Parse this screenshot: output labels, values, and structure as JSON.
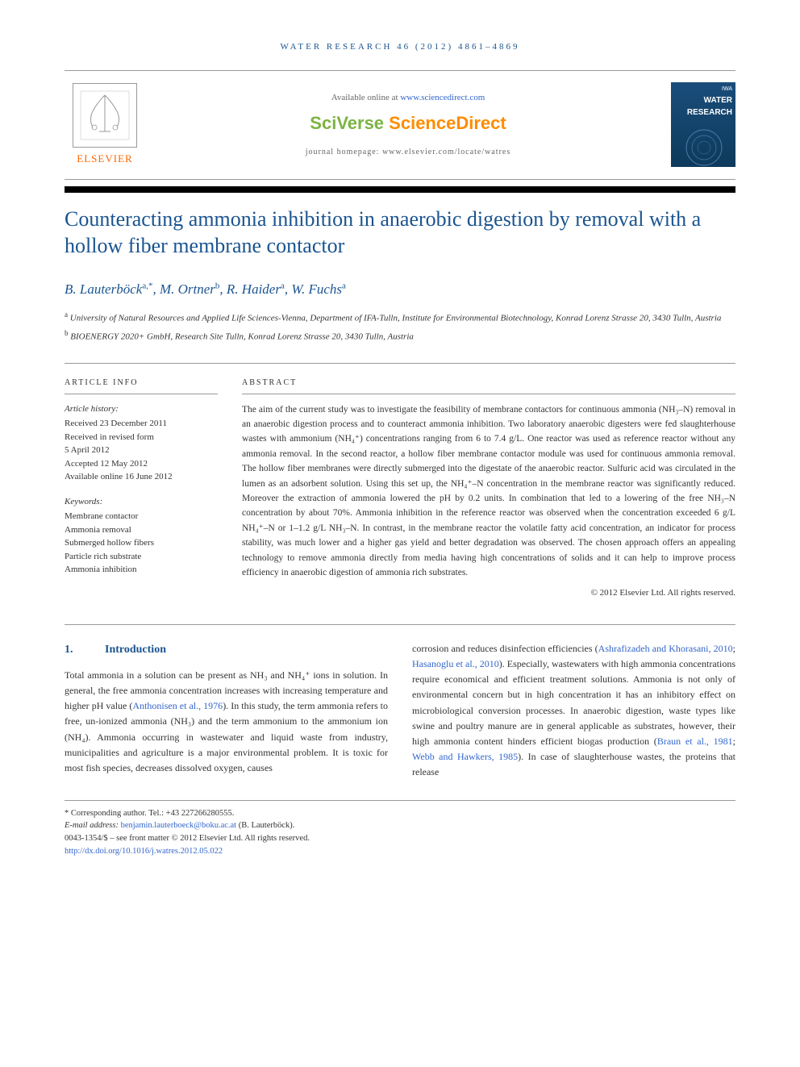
{
  "journal_header": "WATER RESEARCH 46 (2012) 4861–4869",
  "branding": {
    "elsevier": "ELSEVIER",
    "available": "Available online at ",
    "available_link": "www.sciencedirect.com",
    "sciverse": "SciVerse ",
    "sciencedirect": "ScienceDirect",
    "homepage_label": "journal homepage: www.elsevier.com/locate/watres",
    "cover_line1": "WATER",
    "cover_line2": "RESEARCH"
  },
  "title": "Counteracting ammonia inhibition in anaerobic digestion by removal with a hollow fiber membrane contactor",
  "authors_html": "B. Lauterböck<sup>a,*</sup>, M. Ortner<sup>b</sup>, R. Haider<sup>a</sup>, W. Fuchs<sup>a</sup>",
  "affiliations": [
    "<sup>a</sup> University of Natural Resources and Applied Life Sciences-Vienna, Department of IFA-Tulln, Institute for Environmental Biotechnology, Konrad Lorenz Strasse 20, 3430 Tulln, Austria",
    "<sup>b</sup> BIOENERGY 2020+ GmbH, Research Site Tulln, Konrad Lorenz Strasse 20, 3430 Tulln, Austria"
  ],
  "article_info": {
    "heading": "ARTICLE INFO",
    "history_label": "Article history:",
    "history_lines": [
      "Received 23 December 2011",
      "Received in revised form",
      "5 April 2012",
      "Accepted 12 May 2012",
      "Available online 16 June 2012"
    ],
    "keywords_label": "Keywords:",
    "keywords": [
      "Membrane contactor",
      "Ammonia removal",
      "Submerged hollow fibers",
      "Particle rich substrate",
      "Ammonia inhibition"
    ]
  },
  "abstract": {
    "heading": "ABSTRACT",
    "text": "The aim of the current study was to investigate the feasibility of membrane contactors for continuous ammonia (NH₃–N) removal in an anaerobic digestion process and to counteract ammonia inhibition. Two laboratory anaerobic digesters were fed slaughterhouse wastes with ammonium (NH₄⁺) concentrations ranging from 6 to 7.4 g/L. One reactor was used as reference reactor without any ammonia removal. In the second reactor, a hollow fiber membrane contactor module was used for continuous ammonia removal. The hollow fiber membranes were directly submerged into the digestate of the anaerobic reactor. Sulfuric acid was circulated in the lumen as an adsorbent solution. Using this set up, the NH₄⁺–N concentration in the membrane reactor was significantly reduced. Moreover the extraction of ammonia lowered the pH by 0.2 units. In combination that led to a lowering of the free NH₃–N concentration by about 70%. Ammonia inhibition in the reference reactor was observed when the concentration exceeded 6 g/L NH₄⁺–N or 1–1.2 g/L NH₃–N. In contrast, in the membrane reactor the volatile fatty acid concentration, an indicator for process stability, was much lower and a higher gas yield and better degradation was observed. The chosen approach offers an appealing technology to remove ammonia directly from media having high concentrations of solids and it can help to improve process efficiency in anaerobic digestion of ammonia rich substrates.",
    "copyright": "© 2012 Elsevier Ltd. All rights reserved."
  },
  "intro": {
    "num": "1.",
    "label": "Introduction",
    "col1": "Total ammonia in a solution can be present as NH₃ and NH₄⁺ ions in solution. In general, the free ammonia concentration increases with increasing temperature and higher pH value (<a>Anthonisen et al., 1976</a>). In this study, the term ammonia refers to free, un-ionized ammonia (NH₃) and the term ammonium to the ammonium ion (NH₄). Ammonia occurring in wastewater and liquid waste from industry, municipalities and agriculture is a major environmental problem. It is toxic for most fish species, decreases dissolved oxygen, causes",
    "col2": "corrosion and reduces disinfection efficiencies (<a>Ashrafizadeh and Khorasani, 2010</a>; <a>Hasanoglu et al., 2010</a>). Especially, wastewaters with high ammonia concentrations require economical and efficient treatment solutions. Ammonia is not only of environmental concern but in high concentration it has an inhibitory effect on microbiological conversion processes. In anaerobic digestion, waste types like swine and poultry manure are in general applicable as substrates, however, their high ammonia content hinders efficient biogas production (<a>Braun et al., 1981</a>; <a>Webb and Hawkers, 1985</a>). In case of slaughterhouse wastes, the proteins that release"
  },
  "footer": {
    "corresponding": "* Corresponding author. Tel.: +43 227266280555.",
    "email_label": "E-mail address: ",
    "email": "benjamin.lauterboeck@boku.ac.at",
    "email_suffix": " (B. Lauterböck).",
    "issn": "0043-1354/$ – see front matter © 2012 Elsevier Ltd. All rights reserved.",
    "doi": "http://dx.doi.org/10.1016/j.watres.2012.05.022"
  },
  "colors": {
    "heading_blue": "#1a5490",
    "link_blue": "#3366cc",
    "elsevier_orange": "#ff6600",
    "sciverse_green": "#7cb342",
    "sd_orange": "#ff8c00"
  }
}
